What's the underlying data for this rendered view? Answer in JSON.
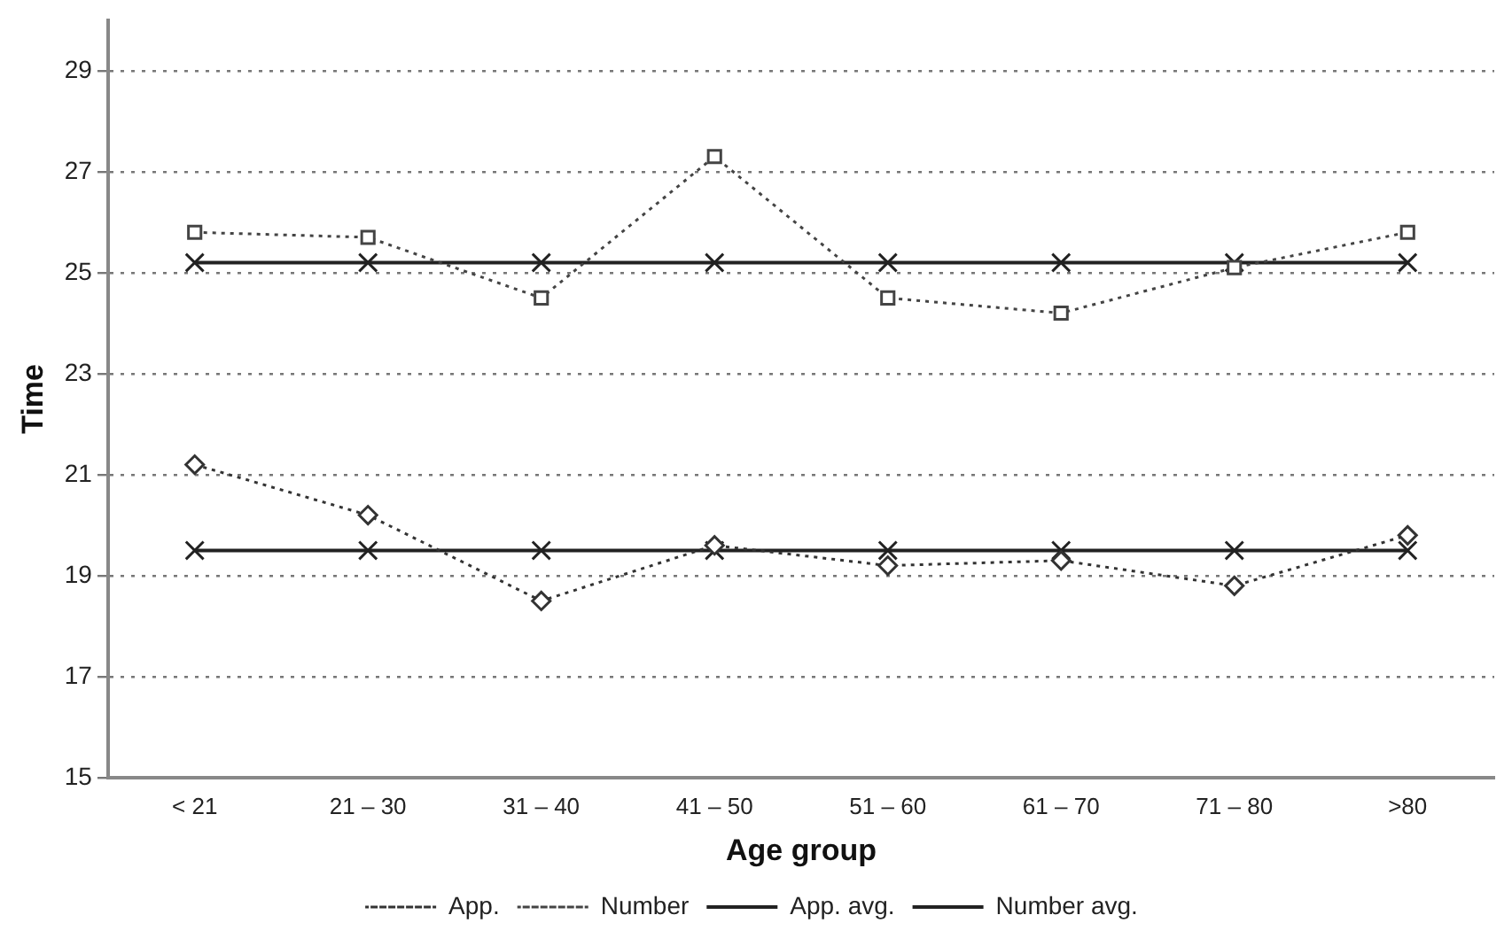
{
  "chart_data": {
    "type": "line",
    "xlabel": "Age group",
    "ylabel": "Time",
    "categories": [
      "< 21",
      "21 – 30",
      "31 – 40",
      "41 – 50",
      "51 – 60",
      "61 – 70",
      "71 – 80",
      ">80"
    ],
    "series": [
      {
        "name": "App.",
        "color": "#333333",
        "values": [
          21.2,
          20.2,
          18.5,
          19.6,
          19.2,
          19.3,
          18.8,
          19.8
        ],
        "marker": "diamond",
        "line_style": "dotted"
      },
      {
        "name": "Number",
        "color": "#444444",
        "values": [
          25.8,
          25.7,
          24.5,
          27.3,
          24.5,
          24.2,
          25.1,
          25.8
        ],
        "marker": "square",
        "line_style": "dotted"
      },
      {
        "name": "App. avg.",
        "color": "#222222",
        "values": [
          19.5,
          19.5,
          19.5,
          19.5,
          19.5,
          19.5,
          19.5,
          19.5
        ],
        "marker": "cross",
        "line_style": "solid"
      },
      {
        "name": "Number avg.",
        "color": "#222222",
        "values": [
          25.2,
          25.2,
          25.2,
          25.2,
          25.2,
          25.2,
          25.2,
          25.2
        ],
        "marker": "cross",
        "line_style": "solid"
      }
    ],
    "ylim": [
      15,
      30
    ],
    "yticks": [
      15,
      17,
      19,
      21,
      23,
      25,
      27,
      29
    ],
    "grid": "y",
    "legend": "bottom"
  }
}
